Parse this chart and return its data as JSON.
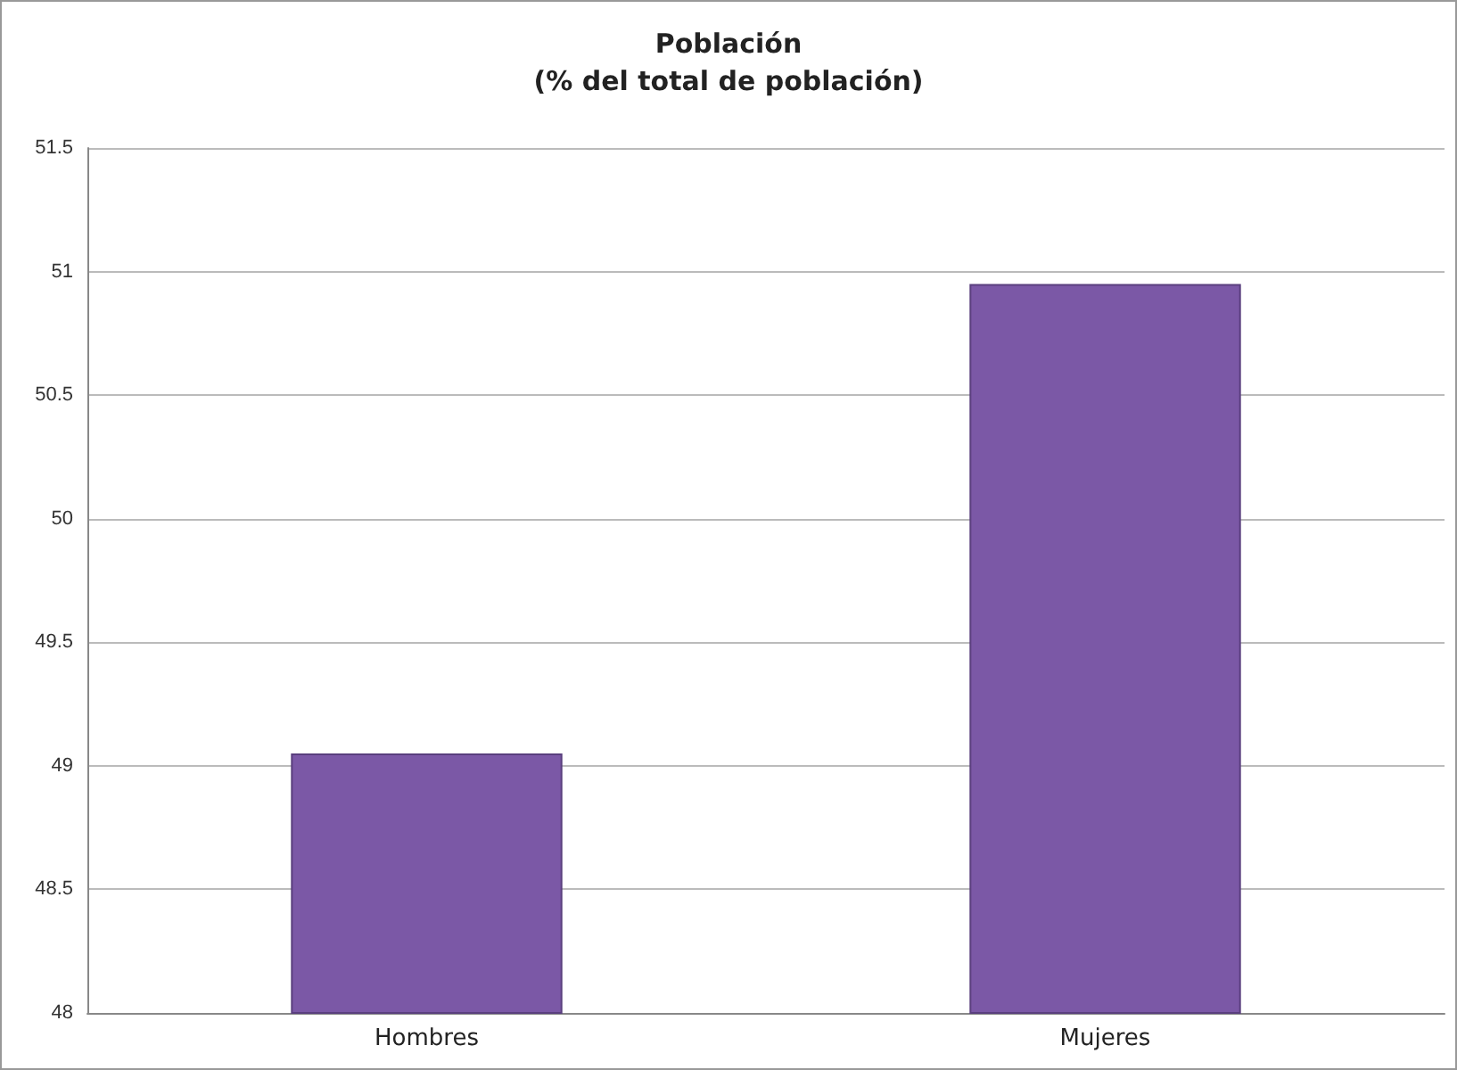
{
  "chart_data": {
    "type": "bar",
    "title": "Población\n(% del total de población)",
    "categories": [
      "Hombres",
      "Mujeres"
    ],
    "values": [
      49.05,
      50.95
    ],
    "color": "#7b58a6",
    "ylim": [
      48,
      51.5
    ],
    "yticks": [
      48,
      48.5,
      49,
      49.5,
      50,
      50.5,
      51,
      51.5
    ],
    "grid": "y"
  }
}
